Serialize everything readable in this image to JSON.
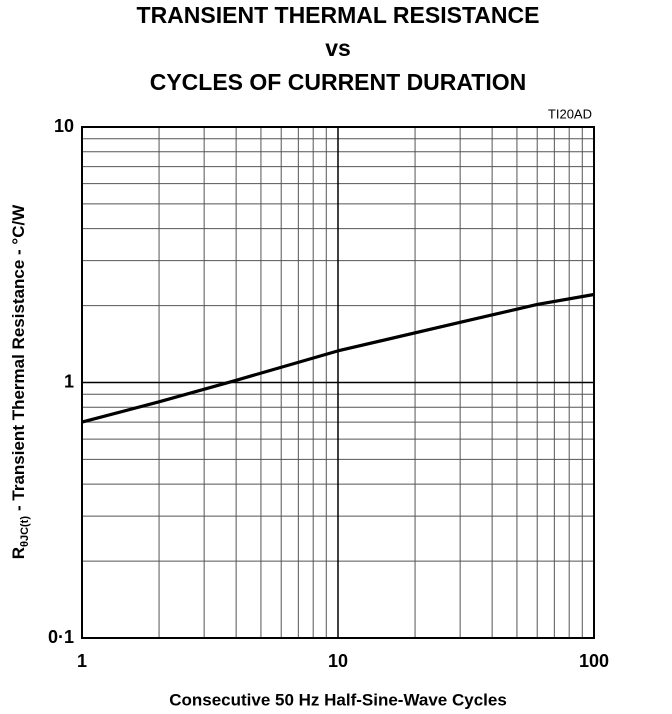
{
  "chart_data": {
    "type": "line",
    "title": [
      "TRANSIENT THERMAL RESISTANCE",
      "vs",
      "CYCLES OF CURRENT DURATION"
    ],
    "annotation": "TI20AD",
    "xlabel": "Consecutive 50 Hz Half-Sine-Wave Cycles",
    "ylabel": {
      "main": "R",
      "sub": "θJC(t)",
      "rest": "- Transient Thermal Resistance - °C/W"
    },
    "x": [
      1,
      2,
      4,
      10,
      30,
      60,
      100
    ],
    "values": [
      0.7,
      0.84,
      1.02,
      1.33,
      1.72,
      2.02,
      2.21
    ],
    "color": "#000000",
    "xscale": "log",
    "yscale": "log",
    "xlim": [
      1,
      100
    ],
    "ylim": [
      0.1,
      10
    ],
    "xticks": [
      1,
      10,
      100
    ],
    "yticks": [
      {
        "value": 0.1,
        "label": "0·1"
      },
      1,
      10
    ],
    "minor_xticks": [
      2,
      3,
      4,
      5,
      6,
      7,
      8,
      9,
      20,
      30,
      40,
      50,
      60,
      70,
      80,
      90
    ],
    "minor_yticks": [
      0.2,
      0.3,
      0.4,
      0.5,
      0.6,
      0.7,
      0.8,
      0.9,
      2,
      3,
      4,
      5,
      6,
      7,
      8,
      9
    ],
    "grid": true
  }
}
